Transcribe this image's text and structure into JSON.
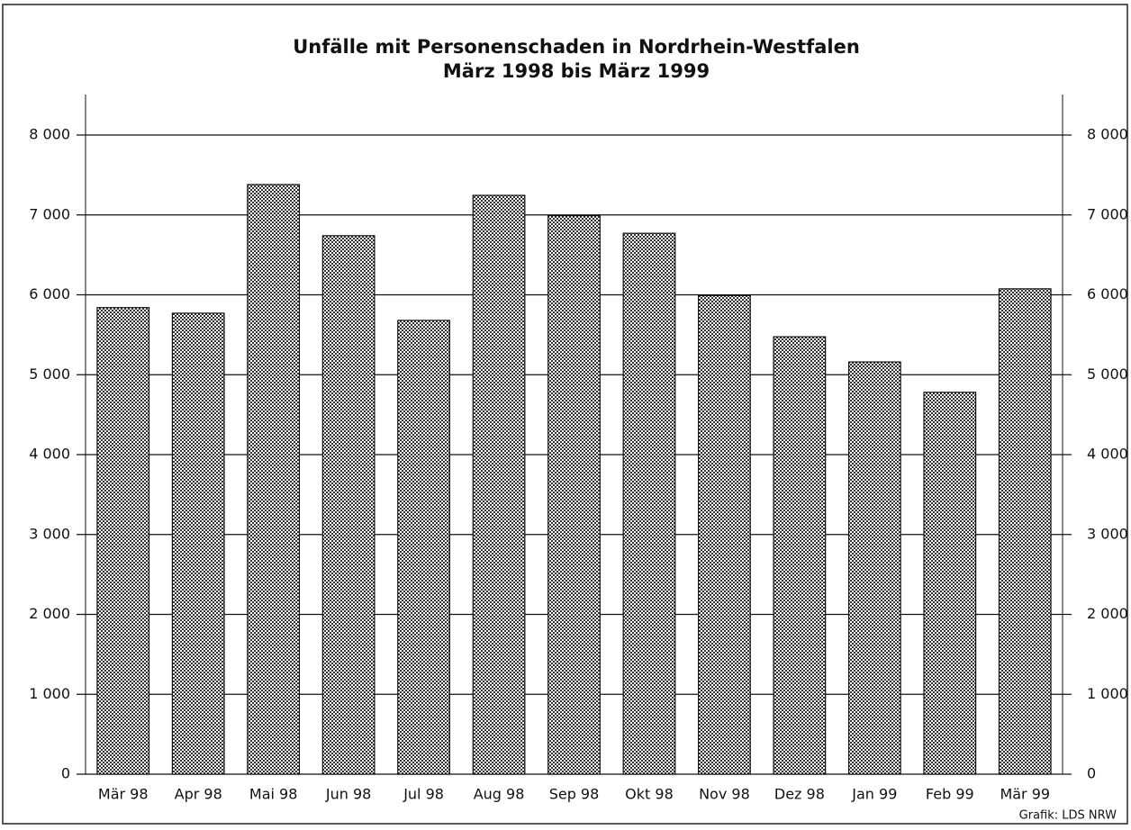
{
  "chart_data": {
    "type": "bar",
    "title": "Unfälle mit Personenschaden in Nordrhein-Westfalen",
    "subtitle": "März 1998 bis März 1999",
    "source": "Grafik: LDS NRW",
    "categories": [
      "Mär 98",
      "Apr 98",
      "Mai 98",
      "Jun 98",
      "Jul 98",
      "Aug 98",
      "Sep 98",
      "Okt 98",
      "Nov 98",
      "Dez 98",
      "Jan 99",
      "Feb 99",
      "Mär 99"
    ],
    "values": [
      5840,
      5770,
      7380,
      6740,
      5680,
      7245,
      6990,
      6770,
      5990,
      5475,
      5160,
      4780,
      6075
    ],
    "color": "#7a7a7a",
    "ylim": [
      0,
      8000
    ],
    "yticks": [
      0,
      {
        "value": 1000,
        "label": "1 000"
      },
      {
        "value": 2000,
        "label": "2 000"
      },
      {
        "value": 3000,
        "label": "3 000"
      },
      {
        "value": 4000,
        "label": "4 000"
      },
      {
        "value": 5000,
        "label": "5 000"
      },
      {
        "value": 6000,
        "label": "6 000"
      },
      {
        "value": 7000,
        "label": "7 000"
      },
      {
        "value": 8000,
        "label": "8 000"
      }
    ],
    "y2lim": [
      0,
      8000
    ],
    "y2ticks": [
      0,
      {
        "value": 1000,
        "label": "1 000"
      },
      {
        "value": 2000,
        "label": "2 000"
      },
      {
        "value": 3000,
        "label": "3 000"
      },
      {
        "value": 4000,
        "label": "4 000"
      },
      {
        "value": 5000,
        "label": "5 000"
      },
      {
        "value": 6000,
        "label": "6 000"
      },
      {
        "value": 7000,
        "label": "7 000"
      },
      {
        "value": 8000,
        "label": "8 000"
      }
    ],
    "grid": true
  }
}
